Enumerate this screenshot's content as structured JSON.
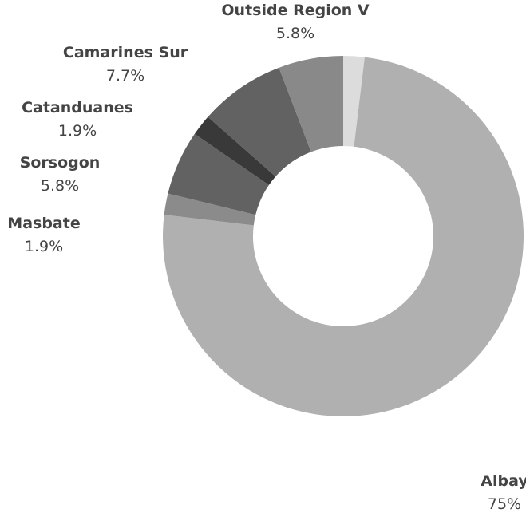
{
  "chart_data": {
    "type": "donut",
    "categories": [
      null,
      "Albay",
      "Masbate",
      "Sorsogon",
      "Catanduanes",
      "Camarines Sur",
      "Outside Region V"
    ],
    "values": [
      1.9,
      75,
      1.9,
      5.8,
      1.9,
      7.7,
      5.8
    ],
    "value_labels": [
      null,
      "75%",
      "1.9%",
      "5.8%",
      "1.9%",
      "7.7%",
      "5.8%"
    ],
    "colors": [
      "#dcdcdc",
      "#b0b0b0",
      "#8b8b8b",
      "#626262",
      "#393939",
      "#626262",
      "#898989"
    ]
  }
}
